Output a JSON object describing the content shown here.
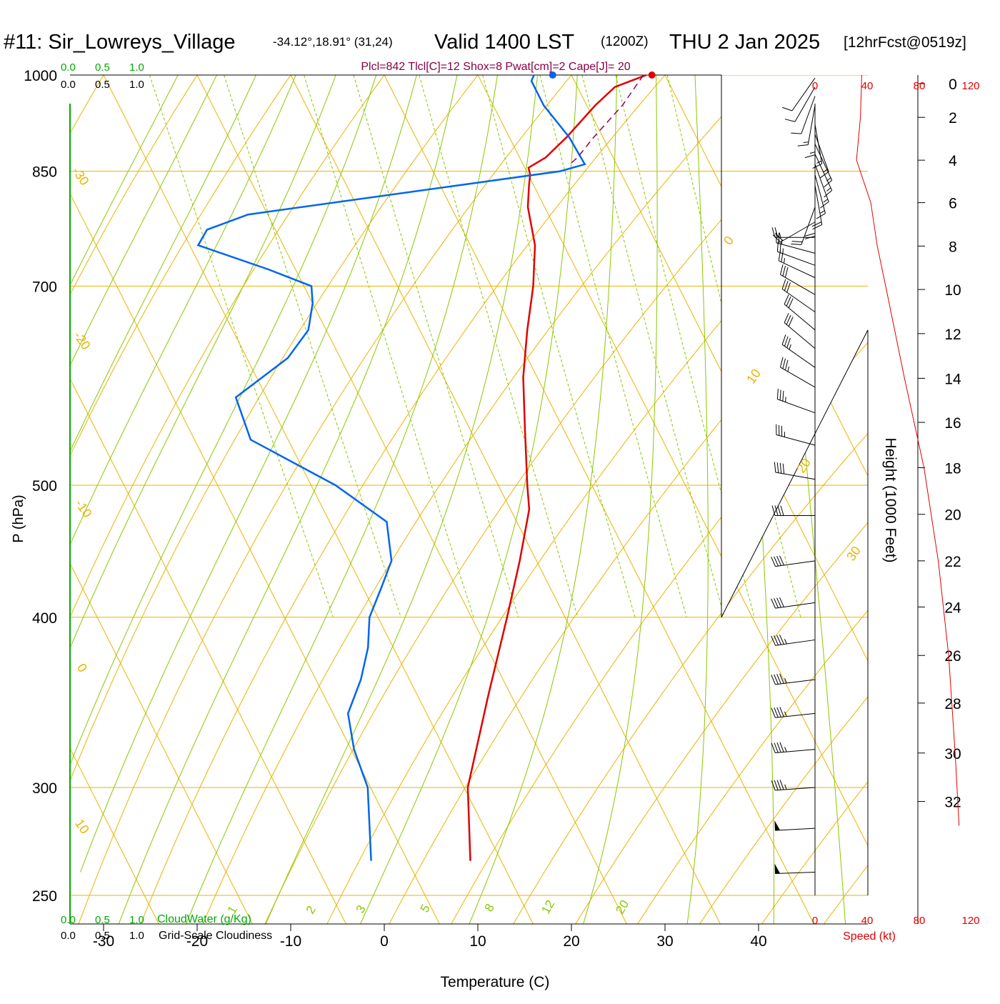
{
  "header": {
    "station": "#11: Sir_Lowreys_Village",
    "coords": "-34.12°,18.91° (31,24)",
    "valid": "Valid 1400 LST",
    "zulu": "(1200Z)",
    "date": "THU 2 Jan 2025",
    "forecast": "[12hrFcst@0519z]"
  },
  "parcel_info": "Plcl=842 Tlcl[C]=12 Shox=8 Pwat[cm]=2 Cape[J]= 20",
  "cloud_scale": {
    "labels": [
      "0.0",
      "0.5",
      "1.0"
    ],
    "cloudwater_label": "CloudWater (g/Kg)",
    "cloudiness_label": "Grid-Scale Cloudiness"
  },
  "wind_speed_axis": {
    "ticks": [
      "0",
      "40",
      "80",
      "120"
    ],
    "label": "Speed (kt)"
  },
  "colors": {
    "temperature": "#e00000",
    "dewpoint": "#0066ee",
    "isotherm": "#e8b400",
    "dry_adiabat": "#e8b400",
    "moist_adiabat": "#88c800",
    "mixing_ratio": "#88c800",
    "cloud_axis": "#00aa00",
    "parcel": "#880066",
    "wind_speed": "#e00000",
    "header_info": "#880044"
  },
  "chart_data": {
    "type": "line",
    "skewt": true,
    "xlabel": "Temperature (C)",
    "ylabel": "P (hPa)",
    "y2label": "Height (1000 Feet)",
    "x_ticks": [
      -30,
      -20,
      -10,
      0,
      10,
      20,
      30,
      40
    ],
    "y_ticks": [
      250,
      300,
      400,
      500,
      700,
      850,
      1000
    ],
    "ylim": [
      1000,
      250
    ],
    "xlim": [
      -34,
      36
    ],
    "height_ticks": [
      0,
      2,
      4,
      6,
      8,
      10,
      12,
      14,
      16,
      18,
      20,
      22,
      24,
      26,
      28,
      30,
      32
    ],
    "height_pressure": [
      1000,
      931,
      866,
      806,
      749,
      696,
      646,
      599,
      556,
      515,
      476,
      440,
      407,
      375,
      346,
      318,
      293
    ],
    "dry_adiabat_labels": [
      "-30",
      "-20",
      "-10",
      "0",
      "10",
      "0",
      "10",
      "20",
      "30"
    ],
    "moist_adiabat_labels": [
      "1",
      "2",
      "3",
      "5",
      "8",
      "12",
      "20"
    ],
    "series": [
      {
        "name": "Temperature",
        "pressure": [
          265,
          300,
          350,
          400,
          440,
          480,
          500,
          550,
          600,
          650,
          700,
          750,
          800,
          830,
          845,
          855,
          870,
          900,
          950,
          980,
          1000
        ],
        "temp": [
          -33.3,
          -29.6,
          -22.5,
          -16.2,
          -11.8,
          -8.0,
          -6.9,
          -4.1,
          -1.5,
          1.5,
          4.5,
          6.9,
          8.2,
          9.5,
          10.2,
          10.4,
          12.8,
          16.1,
          20.9,
          24.0,
          28.0
        ]
      },
      {
        "name": "Dewpoint",
        "pressure": [
          265,
          300,
          320,
          340,
          360,
          380,
          400,
          420,
          440,
          470,
          500,
          540,
          580,
          620,
          650,
          680,
          700,
          720,
          750,
          770,
          790,
          850,
          860,
          900,
          950,
          990,
          1000
        ],
        "temp": [
          -43.9,
          -40.3,
          -39.7,
          -38.4,
          -35.2,
          -32.7,
          -30.9,
          -28.1,
          -25.5,
          -23.9,
          -27.4,
          -34.0,
          -33.3,
          -25.6,
          -21.9,
          -20.0,
          -19.2,
          -22.9,
          -29.1,
          -27.3,
          -22.1,
          13.6,
          16.6,
          16.4,
          15.4,
          15.4,
          16.0
        ]
      },
      {
        "name": "Parcel",
        "pressure": [
          1000,
          950,
          900,
          870,
          860
        ],
        "temp": [
          27.7,
          23.8,
          19.0,
          16.2,
          15.0
        ]
      }
    ],
    "surface_temp": 28.6,
    "surface_dewpoint": 18.0,
    "wind_pressure": [
      260,
      280,
      300,
      320,
      340,
      360,
      385,
      410,
      440,
      475,
      505,
      535,
      565,
      590,
      610,
      630,
      650,
      670,
      690,
      710,
      725,
      740,
      760,
      780,
      800,
      815,
      830,
      845,
      860,
      875,
      890,
      905,
      920,
      935,
      950,
      965,
      980,
      995
    ],
    "wind_speed": [
      48,
      48,
      47,
      46,
      45,
      44,
      43,
      42,
      40,
      39,
      38,
      37,
      36,
      34,
      33,
      32,
      31,
      30,
      28,
      27,
      26,
      24,
      23,
      21,
      20,
      19,
      18,
      17,
      16,
      15,
      15,
      15,
      14,
      13,
      13,
      12,
      12,
      11
    ],
    "wind_dir": [
      268,
      267,
      266,
      265,
      264,
      263,
      262,
      262,
      262,
      270,
      280,
      285,
      290,
      300,
      305,
      310,
      310,
      305,
      300,
      295,
      290,
      285,
      270,
      240,
      200,
      180,
      170,
      165,
      160,
      155,
      155,
      160,
      170,
      180,
      190,
      200,
      210,
      215
    ],
    "wind_speed_profile": {
      "height_kft": [
        0,
        2,
        4,
        6,
        8,
        10,
        14,
        18,
        22,
        26,
        30,
        33
      ],
      "speed_kt": [
        36,
        35,
        32,
        43,
        48,
        55,
        69,
        84,
        95,
        103,
        108,
        111
      ]
    }
  }
}
